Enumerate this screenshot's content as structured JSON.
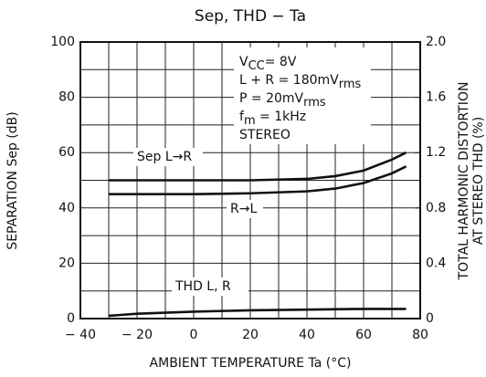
{
  "chart_data": {
    "type": "line",
    "title": "Sep, THD − Ta",
    "xlabel": "AMBIENT TEMPERATURE   Ta   (°C)",
    "ylabel": "SEPARATION  Sep    (dB)",
    "y2label": [
      "TOTAL HARMONIC DISTORTION",
      "AT STEREO    THD    (%)"
    ],
    "xlim": [
      -40,
      80
    ],
    "xticks": [
      {
        "value": -40,
        "label": "− 40"
      },
      {
        "value": -20,
        "label": "− 20"
      },
      0,
      20,
      40,
      60,
      80
    ],
    "xminor": [
      -30,
      -10,
      10,
      30,
      50,
      70
    ],
    "ylim": [
      0,
      100
    ],
    "yticks": [
      0,
      20,
      40,
      60,
      80,
      100
    ],
    "yminor": [
      10,
      30,
      50,
      70,
      90
    ],
    "y2lim": [
      0,
      2
    ],
    "y2ticks": [
      0,
      0.4,
      0.8,
      1.2,
      1.6,
      {
        "value": 2,
        "label": "2.0"
      }
    ],
    "grid": true,
    "series": [
      {
        "name": "Sep L→R",
        "color": "#111111",
        "x": [
          -30,
          -20,
          0,
          20,
          40,
          50,
          60,
          70,
          75
        ],
        "values": [
          50,
          50,
          50,
          50,
          50.5,
          51.5,
          53.5,
          57.5,
          60
        ]
      },
      {
        "name": "R→L",
        "color": "#111111",
        "x": [
          -30,
          -20,
          0,
          20,
          40,
          50,
          60,
          70,
          75
        ],
        "values": [
          45,
          45,
          45,
          45.3,
          46,
          47,
          49,
          52.5,
          55
        ]
      },
      {
        "name": "THD L, R",
        "color": "#111111",
        "axis": "y2",
        "x": [
          -30,
          -20,
          0,
          20,
          40,
          60,
          75
        ],
        "values": [
          0.02,
          0.035,
          0.05,
          0.06,
          0.065,
          0.07,
          0.07
        ]
      }
    ],
    "conditions": [
      [
        "V",
        "CC",
        "= 8V"
      ],
      [
        "L + R = 180mV",
        "rms"
      ],
      [
        "P = 20mV",
        "rms"
      ],
      [
        "f",
        "m",
        " = 1kHz"
      ],
      [
        "STEREO"
      ]
    ]
  }
}
